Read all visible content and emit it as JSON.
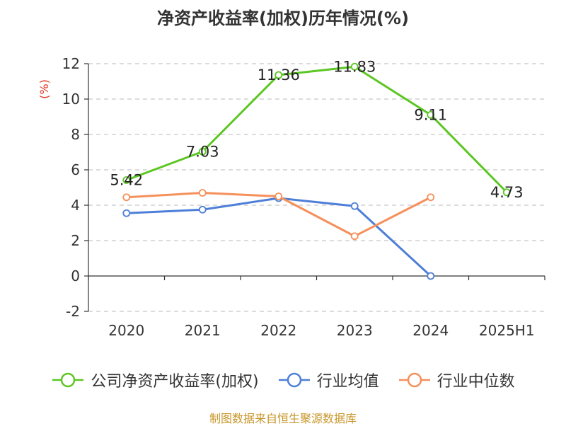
{
  "title": "净资产收益率(加权)历年情况(%)",
  "chart_data": {
    "type": "line",
    "title": "净资产收益率(加权)历年情况(%)",
    "ylabel": "(%)",
    "xlabel": "",
    "categories": [
      "2020",
      "2021",
      "2022",
      "2023",
      "2024",
      "2025H1"
    ],
    "ylim": [
      -2,
      12
    ],
    "yticks": [
      -2,
      0,
      2,
      4,
      6,
      8,
      10,
      12
    ],
    "grid": true,
    "legend_position": "bottom",
    "series": [
      {
        "name": "公司净资产收益率(加权)",
        "color": "#5cc623",
        "values": [
          5.42,
          7.03,
          11.36,
          11.83,
          9.11,
          4.73
        ],
        "show_labels": true
      },
      {
        "name": "行业均值",
        "color": "#4e7fd8",
        "values": [
          3.55,
          3.75,
          4.4,
          3.95,
          0.0,
          null
        ],
        "show_labels": false
      },
      {
        "name": "行业中位数",
        "color": "#f5905b",
        "values": [
          4.45,
          4.7,
          4.5,
          2.25,
          4.45,
          null
        ],
        "show_labels": false
      }
    ]
  },
  "source": "制图数据来自恒生聚源数据库"
}
